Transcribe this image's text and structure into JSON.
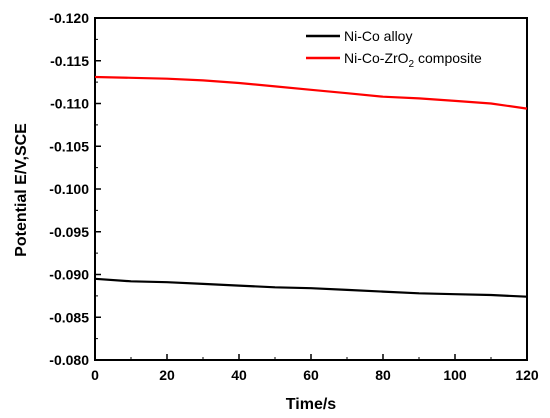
{
  "chart_data": {
    "type": "line",
    "xlabel": "Time/s",
    "ylabel": "Potential E/V,SCE",
    "xlim": [
      0,
      120
    ],
    "ylim": [
      -0.12,
      -0.08
    ],
    "y_axis_reversed": true,
    "x_ticks": [
      "0",
      "20",
      "40",
      "60",
      "80",
      "100",
      "120"
    ],
    "y_ticks": [
      "-0.120",
      "-0.115",
      "-0.110",
      "-0.105",
      "-0.100",
      "-0.095",
      "-0.090",
      "-0.085",
      "-0.080"
    ],
    "grid": false,
    "legend_position": "top-right",
    "series": [
      {
        "name": "Ni-Co alloy",
        "color": "#000000",
        "x": [
          0,
          10,
          20,
          30,
          40,
          50,
          60,
          70,
          80,
          90,
          100,
          110,
          120
        ],
        "y": [
          -0.0895,
          -0.0892,
          -0.0891,
          -0.0889,
          -0.0887,
          -0.0885,
          -0.0884,
          -0.0882,
          -0.088,
          -0.0878,
          -0.0877,
          -0.0876,
          -0.0874
        ]
      },
      {
        "name_parts": [
          "Ni-Co-ZrO",
          "2",
          " composite"
        ],
        "color": "#ff0000",
        "x": [
          0,
          10,
          20,
          30,
          40,
          50,
          60,
          70,
          80,
          90,
          100,
          110,
          120
        ],
        "y": [
          -0.1131,
          -0.113,
          -0.1129,
          -0.1127,
          -0.1124,
          -0.112,
          -0.1116,
          -0.1112,
          -0.1108,
          -0.1106,
          -0.1103,
          -0.11,
          -0.1094
        ]
      }
    ]
  }
}
